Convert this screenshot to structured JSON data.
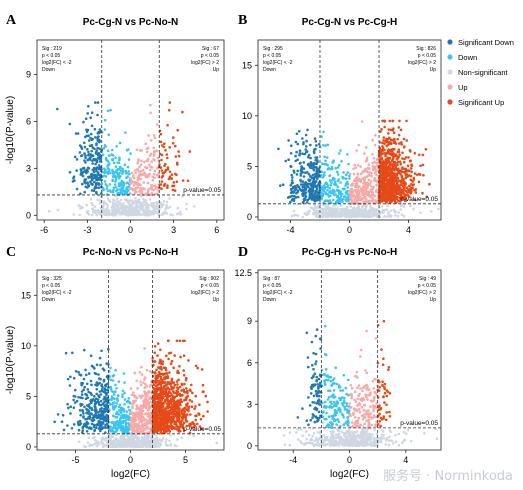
{
  "figure": {
    "watermark": "服务号 · Norminkoda",
    "legend": {
      "items": [
        {
          "label": "Significant Down",
          "color": "#1f78b4"
        },
        {
          "label": "Down",
          "color": "#39c5f2"
        },
        {
          "label": "Non-significant",
          "color": "#cfd7e2"
        },
        {
          "label": "Up",
          "color": "#f7a9a8"
        },
        {
          "label": "Significant Up",
          "color": "#e64a19"
        }
      ]
    }
  },
  "chart_data": [
    {
      "type": "scatter",
      "panel_letter": "A",
      "title": "Pc-Cg-N vs Pc-No-N",
      "xlabel": "",
      "ylabel": "-log10(P-value)",
      "xlim": [
        -6.5,
        6.5
      ],
      "ylim": [
        -0.3,
        11.2
      ],
      "xticks": [
        -6,
        -3,
        0,
        3,
        6
      ],
      "yticks": [
        0,
        3,
        6,
        9
      ],
      "fc_threshold": [
        -2,
        2
      ],
      "p_threshold": 1.3,
      "p_label": "p-value=0.05",
      "left_note": [
        "Sig : 219",
        "p < 0.05",
        "log2(FC) < -2",
        "Down"
      ],
      "right_note": [
        "Sig : 67",
        "p < 0.05",
        "log2(FC) > 2",
        "Up"
      ],
      "counts": {
        "sig_down": 219,
        "sig_up": 67
      },
      "xspread": 3.2,
      "ymax": 7.2
    },
    {
      "type": "scatter",
      "panel_letter": "B",
      "title": "Pc-Cg-N vs Pc-Cg-H",
      "xlabel": "",
      "ylabel": "",
      "xlim": [
        -6.2,
        6.2
      ],
      "ylim": [
        -0.3,
        17.5
      ],
      "xticks": [
        -4,
        0,
        4
      ],
      "yticks": [
        0,
        5,
        10,
        15
      ],
      "fc_threshold": [
        -2,
        2
      ],
      "p_threshold": 1.3,
      "p_label": "p-value=0.05",
      "left_note": [
        "Sig : 295",
        "p < 0.05",
        "log2(FC) < -2",
        "Down"
      ],
      "right_note": [
        "Sig : 826",
        "p < 0.05",
        "log2(FC) > 2",
        "Up"
      ],
      "counts": {
        "sig_down": 295,
        "sig_up": 826
      },
      "xspread": 3.4,
      "ymax": 9.5
    },
    {
      "type": "scatter",
      "panel_letter": "C",
      "title": "Pc-No-N vs Pc-No-H",
      "xlabel": "log2(FC)",
      "ylabel": "-log10(P-value)",
      "xlim": [
        -8.5,
        8.5
      ],
      "ylim": [
        -0.3,
        17.5
      ],
      "xticks": [
        -5,
        0,
        5
      ],
      "yticks": [
        0,
        5,
        10,
        15
      ],
      "fc_threshold": [
        -2,
        2
      ],
      "p_threshold": 1.3,
      "p_label": "p-value=0.05",
      "left_note": [
        "Sig : 325",
        "p < 0.05",
        "log2(FC) < -2",
        "Down"
      ],
      "right_note": [
        "Sig : 902",
        "p < 0.05",
        "log2(FC) > 2",
        "Up"
      ],
      "counts": {
        "sig_down": 325,
        "sig_up": 902
      },
      "xspread": 4.2,
      "ymax": 10.5
    },
    {
      "type": "scatter",
      "panel_letter": "D",
      "title": "Pc-Cg-H vs Pc-No-H",
      "xlabel": "log2(FC)",
      "ylabel": "",
      "xlim": [
        -6.5,
        6.5
      ],
      "ylim": [
        -0.3,
        12.7
      ],
      "xticks": [
        -4,
        0,
        4
      ],
      "yticks": [
        0,
        3,
        6,
        9,
        12.5
      ],
      "fc_threshold": [
        -2,
        2
      ],
      "p_threshold": 1.3,
      "p_label": "p-value=0.05",
      "left_note": [
        "Sig : 87",
        "p < 0.05",
        "log2(FC) < -2",
        "Down"
      ],
      "right_note": [
        "Sig : 49",
        "p < 0.05",
        "log2(FC) > 2",
        "Up"
      ],
      "counts": {
        "sig_down": 87,
        "sig_up": 49
      },
      "xspread": 2.7,
      "ymax": 9.0
    }
  ]
}
